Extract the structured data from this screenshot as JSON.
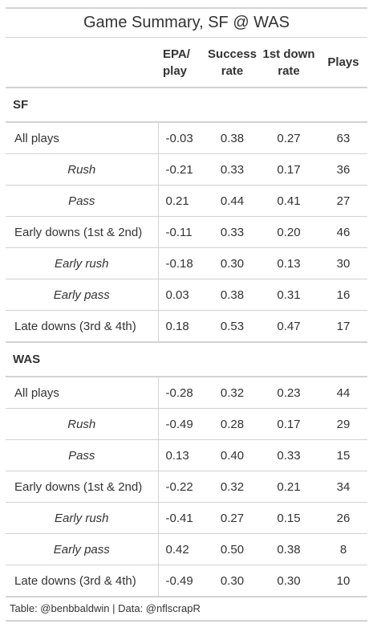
{
  "title": "Game Summary, SF @ WAS",
  "columns": {
    "epa_line1": "EPA/",
    "epa_line2": "play",
    "sr_line1": "Success",
    "sr_line2": "rate",
    "fd_line1": "1st down",
    "fd_line2": "rate",
    "plays": "Plays"
  },
  "groups": [
    {
      "team": "SF",
      "rows": [
        {
          "label": "All plays",
          "epa": "-0.03",
          "sr": "0.38",
          "fd": "0.27",
          "plays": "63",
          "indent": false
        },
        {
          "label": "Rush",
          "epa": "-0.21",
          "sr": "0.33",
          "fd": "0.17",
          "plays": "36",
          "indent": true
        },
        {
          "label": "Pass",
          "epa": "0.21",
          "sr": "0.44",
          "fd": "0.41",
          "plays": "27",
          "indent": true
        },
        {
          "label": "Early downs (1st & 2nd)",
          "epa": "-0.11",
          "sr": "0.33",
          "fd": "0.20",
          "plays": "46",
          "indent": false
        },
        {
          "label": "Early rush",
          "epa": "-0.18",
          "sr": "0.30",
          "fd": "0.13",
          "plays": "30",
          "indent": true
        },
        {
          "label": "Early pass",
          "epa": "0.03",
          "sr": "0.38",
          "fd": "0.31",
          "plays": "16",
          "indent": true
        },
        {
          "label": "Late downs (3rd & 4th)",
          "epa": "0.18",
          "sr": "0.53",
          "fd": "0.47",
          "plays": "17",
          "indent": false
        }
      ]
    },
    {
      "team": "WAS",
      "rows": [
        {
          "label": "All plays",
          "epa": "-0.28",
          "sr": "0.32",
          "fd": "0.23",
          "plays": "44",
          "indent": false
        },
        {
          "label": "Rush",
          "epa": "-0.49",
          "sr": "0.28",
          "fd": "0.17",
          "plays": "29",
          "indent": true
        },
        {
          "label": "Pass",
          "epa": "0.13",
          "sr": "0.40",
          "fd": "0.33",
          "plays": "15",
          "indent": true
        },
        {
          "label": "Early downs (1st & 2nd)",
          "epa": "-0.22",
          "sr": "0.32",
          "fd": "0.21",
          "plays": "34",
          "indent": false
        },
        {
          "label": "Early rush",
          "epa": "-0.41",
          "sr": "0.27",
          "fd": "0.15",
          "plays": "26",
          "indent": true
        },
        {
          "label": "Early pass",
          "epa": "0.42",
          "sr": "0.50",
          "fd": "0.38",
          "plays": "8",
          "indent": true
        },
        {
          "label": "Late downs (3rd & 4th)",
          "epa": "-0.49",
          "sr": "0.30",
          "fd": "0.30",
          "plays": "10",
          "indent": false
        }
      ]
    }
  ],
  "footer": "Table: @benbbaldwin | Data: @nflscrapR"
}
